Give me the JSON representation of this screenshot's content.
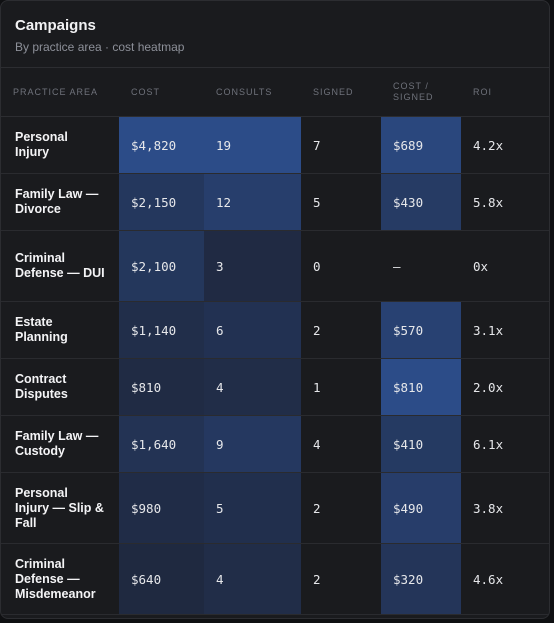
{
  "header": {
    "title": "Campaigns",
    "subtitle": "By practice area · cost heatmap"
  },
  "table": {
    "columns": [
      "PRACTICE AREA",
      "COST",
      "CONSULTS",
      "SIGNED",
      "COST / SIGNED",
      "ROI"
    ],
    "rows": [
      [
        "Personal Injury",
        "$4,820",
        "19",
        "7",
        "$689",
        "4.2x"
      ],
      [
        "Family Law — Divorce",
        "$2,150",
        "12",
        "5",
        "$430",
        "5.8x"
      ],
      [
        "Criminal Defense — DUI",
        "$2,100",
        "3",
        "0",
        "—",
        "0x"
      ],
      [
        "Estate Planning",
        "$1,140",
        "6",
        "2",
        "$570",
        "3.1x"
      ],
      [
        "Contract Disputes",
        "$810",
        "4",
        "1",
        "$810",
        "2.0x"
      ],
      [
        "Family Law — Custody",
        "$1,640",
        "9",
        "4",
        "$410",
        "6.1x"
      ],
      [
        "Personal Injury — Slip & Fall",
        "$980",
        "5",
        "2",
        "$490",
        "3.8x"
      ],
      [
        "Criminal Defense — Misdemeanor",
        "$640",
        "4",
        "2",
        "$320",
        "4.6x"
      ]
    ]
  }
}
